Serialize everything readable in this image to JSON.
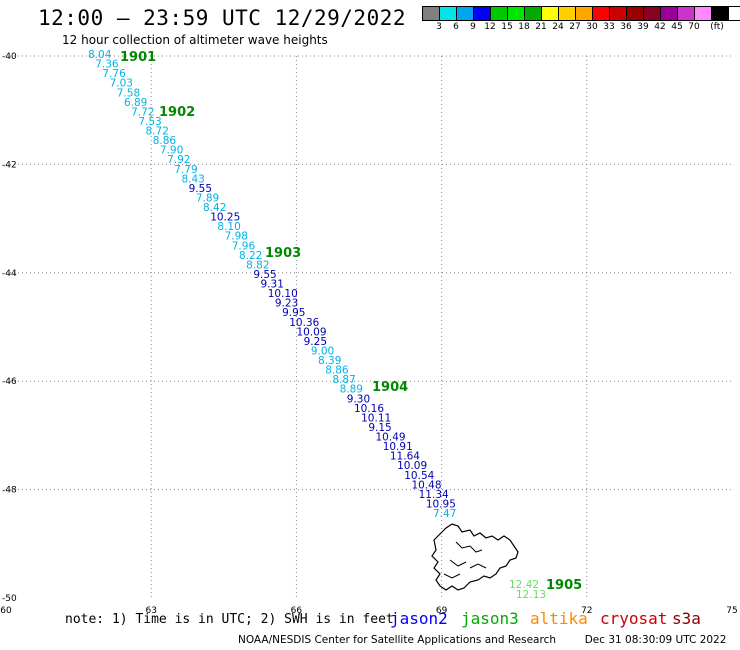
{
  "title": "12:00 – 23:59 UTC 12/29/2022",
  "subtitle": "12 hour collection of altimeter wave heights",
  "legend": {
    "colors": [
      "#808080",
      "#00e5e5",
      "#00a5ee",
      "#0000ff",
      "#00c800",
      "#00e600",
      "#00aa00",
      "#ffff00",
      "#ffd000",
      "#ffa500",
      "#ff0000",
      "#cc0000",
      "#990000",
      "#880022",
      "#990099",
      "#cc33cc",
      "#ff88ff",
      "#000000"
    ],
    "labels": [
      "3",
      "6",
      "9",
      "12",
      "15",
      "18",
      "21",
      "24",
      "27",
      "30",
      "33",
      "36",
      "39",
      "42",
      "45",
      "70",
      "(ft)"
    ]
  },
  "axes": {
    "lon_ticks": [
      "60",
      "63",
      "66",
      "69",
      "72",
      "75"
    ],
    "lat_ticks": [
      "-40",
      "-42",
      "-44",
      "-46",
      "-48",
      "-50"
    ]
  },
  "colors": {
    "light_cyan": "#00b4e6",
    "dark_blue": "#0000b4",
    "time_green": "#008800",
    "light_green": "#66dd66",
    "gridline": "#888888"
  },
  "time_labels": [
    "1901",
    "1902",
    "1903",
    "1904",
    "1905"
  ],
  "track_values": [
    [
      "8.04",
      "light_cyan"
    ],
    [
      "7.36",
      "light_cyan"
    ],
    [
      "7.76",
      "light_cyan"
    ],
    [
      "7.03",
      "light_cyan"
    ],
    [
      "7.58",
      "light_cyan"
    ],
    [
      "6.89",
      "light_cyan"
    ],
    [
      "7.72",
      "light_cyan"
    ],
    [
      "7.53",
      "light_cyan"
    ],
    [
      "8.72",
      "light_cyan"
    ],
    [
      "8.86",
      "light_cyan"
    ],
    [
      "7.90",
      "light_cyan"
    ],
    [
      "7.92",
      "light_cyan"
    ],
    [
      "7.79",
      "light_cyan"
    ],
    [
      "8.43",
      "light_cyan"
    ],
    [
      "9.55",
      "dark_blue"
    ],
    [
      "7.89",
      "light_cyan"
    ],
    [
      "8.42",
      "light_cyan"
    ],
    [
      "10.25",
      "dark_blue"
    ],
    [
      "8.10",
      "light_cyan"
    ],
    [
      "7.98",
      "light_cyan"
    ],
    [
      "7.96",
      "light_cyan"
    ],
    [
      "8.22",
      "light_cyan"
    ],
    [
      "8.82",
      "light_cyan"
    ],
    [
      "9.55",
      "dark_blue"
    ],
    [
      "9.31",
      "dark_blue"
    ],
    [
      "10.10",
      "dark_blue"
    ],
    [
      "9.23",
      "dark_blue"
    ],
    [
      "9.95",
      "dark_blue"
    ],
    [
      "10.36",
      "dark_blue"
    ],
    [
      "10.09",
      "dark_blue"
    ],
    [
      "9.25",
      "dark_blue"
    ],
    [
      "9.00",
      "light_cyan"
    ],
    [
      "8.39",
      "light_cyan"
    ],
    [
      "8.86",
      "light_cyan"
    ],
    [
      "8.87",
      "light_cyan"
    ],
    [
      "8.89",
      "light_cyan"
    ],
    [
      "9.30",
      "dark_blue"
    ],
    [
      "10.16",
      "dark_blue"
    ],
    [
      "10.11",
      "dark_blue"
    ],
    [
      "9.15",
      "dark_blue"
    ],
    [
      "10.49",
      "dark_blue"
    ],
    [
      "10.91",
      "dark_blue"
    ],
    [
      "11.64",
      "dark_blue"
    ],
    [
      "10.09",
      "dark_blue"
    ],
    [
      "10.54",
      "dark_blue"
    ],
    [
      "10.48",
      "dark_blue"
    ],
    [
      "11.34",
      "dark_blue"
    ],
    [
      "10.95",
      "dark_blue"
    ],
    [
      "7.47",
      "light_cyan"
    ]
  ],
  "south_values": [
    [
      "12.42",
      "light_green"
    ],
    [
      "12.13",
      "light_green"
    ]
  ],
  "note": "note: 1) Time is in UTC; 2) SWH is in feet",
  "satellites": [
    {
      "name": "jason2",
      "color": "#0000ff"
    },
    {
      "name": "jason3",
      "color": "#00aa00"
    },
    {
      "name": "altika",
      "color": "#ff8800"
    },
    {
      "name": "cryosat",
      "color": "#cc0000"
    },
    {
      "name": "s3a",
      "color": "#880000"
    }
  ],
  "credit": "NOAA/NESDIS Center for Satellite Applications and Research",
  "generated": "Dec 31 08:30:09 UTC 2022"
}
